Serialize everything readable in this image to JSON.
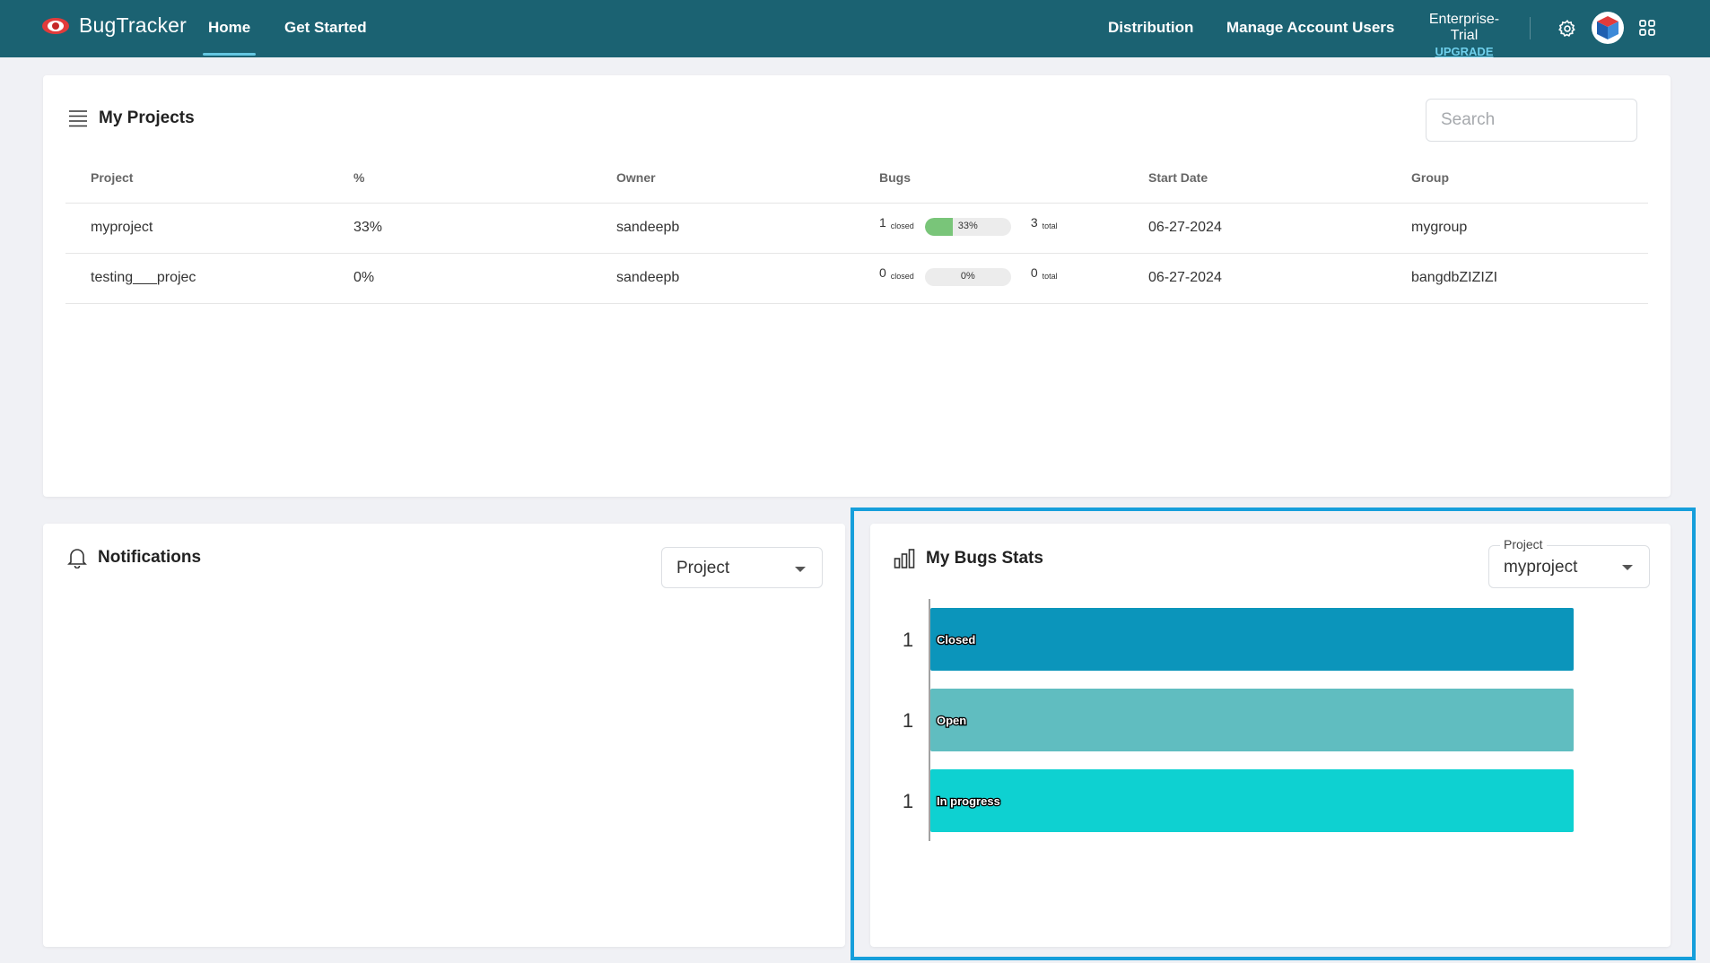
{
  "nav": {
    "brand": "BugTracker",
    "links": [
      {
        "label": "Home",
        "active": true
      },
      {
        "label": "Get Started",
        "active": false
      }
    ],
    "right_links": [
      "Distribution",
      "Manage Account Users"
    ],
    "plan": "Enterprise-Trial",
    "upgrade": "UPGRADE",
    "bg_color": "#1b6272",
    "accent_color": "#64c7e2"
  },
  "projects": {
    "title": "My Projects",
    "search_placeholder": "Search",
    "columns": [
      "Project",
      "%",
      "Owner",
      "Bugs",
      "Start Date",
      "Group"
    ],
    "rows": [
      {
        "project": "myproject",
        "percent": "33%",
        "owner": "sandeepb",
        "closed": "1",
        "closed_label": "closed",
        "bar_text": "33%",
        "bar_fraction": 0.33,
        "total": "3",
        "total_label": "total",
        "start_date": "06-27-2024",
        "group": "mygroup"
      },
      {
        "project": "testing___projec",
        "percent": "0%",
        "owner": "sandeepb",
        "closed": "0",
        "closed_label": "closed",
        "bar_text": "0%",
        "bar_fraction": 0.0,
        "total": "0",
        "total_label": "total",
        "start_date": "06-27-2024",
        "group": "bangdbZIZIZI"
      }
    ]
  },
  "notifications": {
    "title": "Notifications",
    "filter_value": "Project"
  },
  "bug_stats": {
    "title": "My Bugs Stats",
    "select_label": "Project",
    "select_value": "myproject"
  },
  "chart_data": {
    "type": "bar",
    "orientation": "horizontal",
    "categories": [
      "Closed",
      "Open",
      "In progress"
    ],
    "values": [
      1,
      1,
      1
    ],
    "colors": [
      "#0b95bb",
      "#60bdc0",
      "#0ed1d1"
    ],
    "xlim": [
      0,
      1
    ]
  }
}
